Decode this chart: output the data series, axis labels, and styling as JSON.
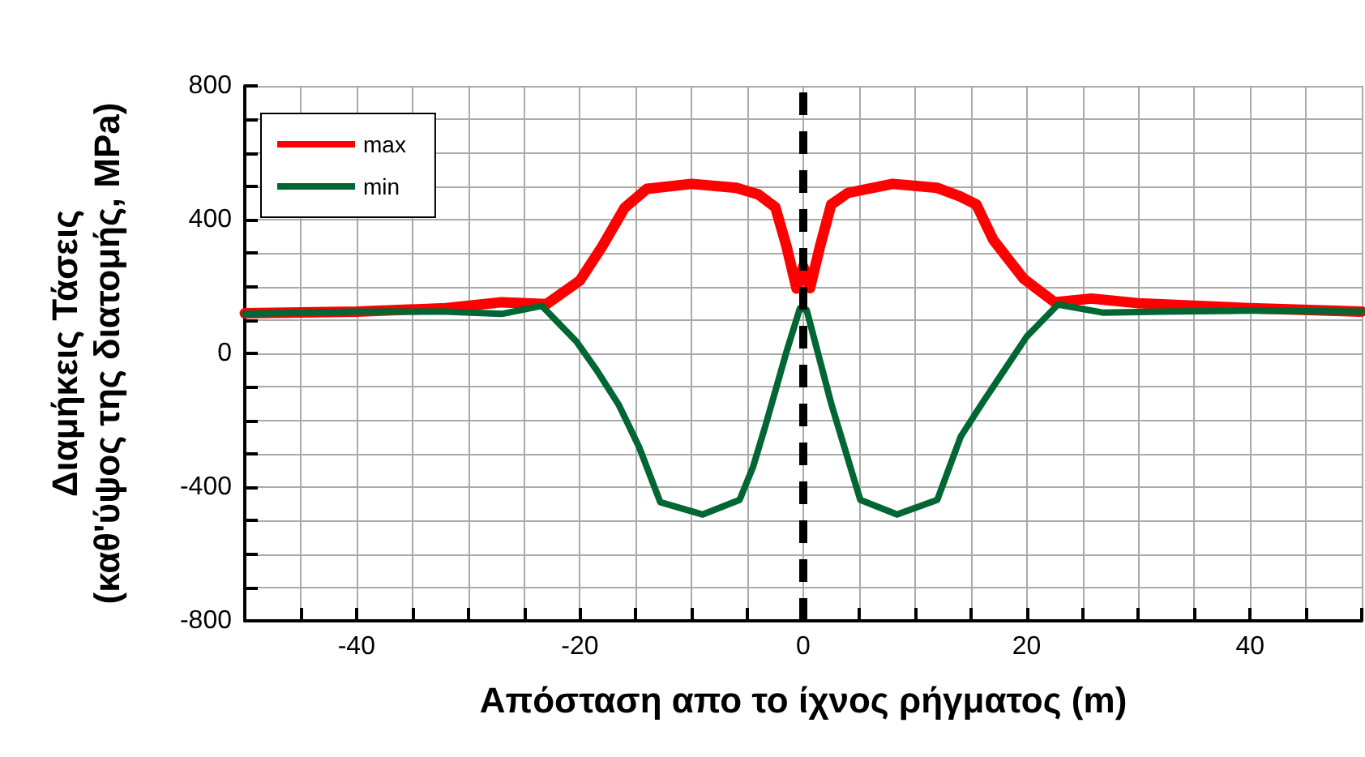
{
  "chart_data": {
    "type": "line",
    "xlabel": "Απόσταση απο το ίχνος ρήγματος (m)",
    "ylabel": "Διαμήκεις Τάσεις\n(καθ'ύψος της διατομής, MPa)",
    "xlim": [
      -50,
      50
    ],
    "ylim": [
      -800,
      800
    ],
    "xticks": [
      {
        "value": -50,
        "label": null
      },
      {
        "value": -45,
        "label": null
      },
      -40,
      {
        "value": -35,
        "label": null
      },
      {
        "value": -30,
        "label": null
      },
      {
        "value": -25,
        "label": null
      },
      -20,
      {
        "value": -15,
        "label": null
      },
      {
        "value": -10,
        "label": null
      },
      {
        "value": -5,
        "label": null
      },
      0,
      {
        "value": 5,
        "label": null
      },
      {
        "value": 10,
        "label": null
      },
      {
        "value": 15,
        "label": null
      },
      20,
      {
        "value": 25,
        "label": null
      },
      {
        "value": 30,
        "label": null
      },
      {
        "value": 35,
        "label": null
      },
      40,
      {
        "value": 45,
        "label": null
      },
      {
        "value": 50,
        "label": null
      }
    ],
    "yticks": [
      -800,
      {
        "value": -700,
        "label": null
      },
      {
        "value": -600,
        "label": null
      },
      {
        "value": -500,
        "label": null
      },
      -400,
      {
        "value": -300,
        "label": null
      },
      {
        "value": -200,
        "label": null
      },
      {
        "value": -100,
        "label": null
      },
      0,
      {
        "value": 100,
        "label": null
      },
      {
        "value": 200,
        "label": null
      },
      {
        "value": 300,
        "label": null
      },
      400,
      {
        "value": 500,
        "label": null
      },
      {
        "value": 600,
        "label": null
      },
      {
        "value": 700,
        "label": null
      },
      800
    ],
    "grid": true,
    "legend": "top left",
    "line_style": "solid",
    "marker": "none",
    "series": [
      {
        "name": "max",
        "color": "#ff0000",
        "x": [
          -50,
          -40,
          -32,
          -27,
          -23,
          -20,
          -18,
          -16,
          -14,
          -10,
          -6,
          -4,
          -2.5,
          -1.5,
          -0.6,
          0,
          0.6,
          1.5,
          2.5,
          4,
          8,
          12,
          14,
          15.5,
          17,
          19.7,
          22.5,
          25.8,
          30,
          40,
          50
        ],
        "values": [
          120,
          125,
          135,
          153,
          147,
          218,
          320,
          435,
          492,
          507,
          495,
          475,
          437,
          320,
          194,
          260,
          195,
          320,
          445,
          480,
          507,
          495,
          470,
          445,
          340,
          224,
          153,
          164,
          150,
          135,
          125
        ]
      },
      {
        "name": "min",
        "color": "#006633",
        "x": [
          -50,
          -40,
          -32,
          -27,
          -23.4,
          -20.3,
          -18.5,
          -16.5,
          -14.7,
          -12.8,
          -9,
          -5.7,
          -4.5,
          -3.4,
          -1.5,
          -0.3,
          0.3,
          2.5,
          5.1,
          8.4,
          12,
          14.1,
          16,
          17.8,
          20,
          22.8,
          26.8,
          32,
          40,
          50
        ],
        "values": [
          118,
          125,
          125,
          118,
          142,
          35,
          -50,
          -155,
          -280,
          -445,
          -482,
          -438,
          -340,
          -218,
          5,
          135,
          130,
          -150,
          -438,
          -482,
          -438,
          -249,
          -150,
          -60,
          50,
          146,
          122,
          125,
          128,
          125
        ]
      }
    ],
    "ref_lines": [
      {
        "axis": "x",
        "value": 0,
        "color": "#000000",
        "line_style": "dashed"
      }
    ]
  }
}
